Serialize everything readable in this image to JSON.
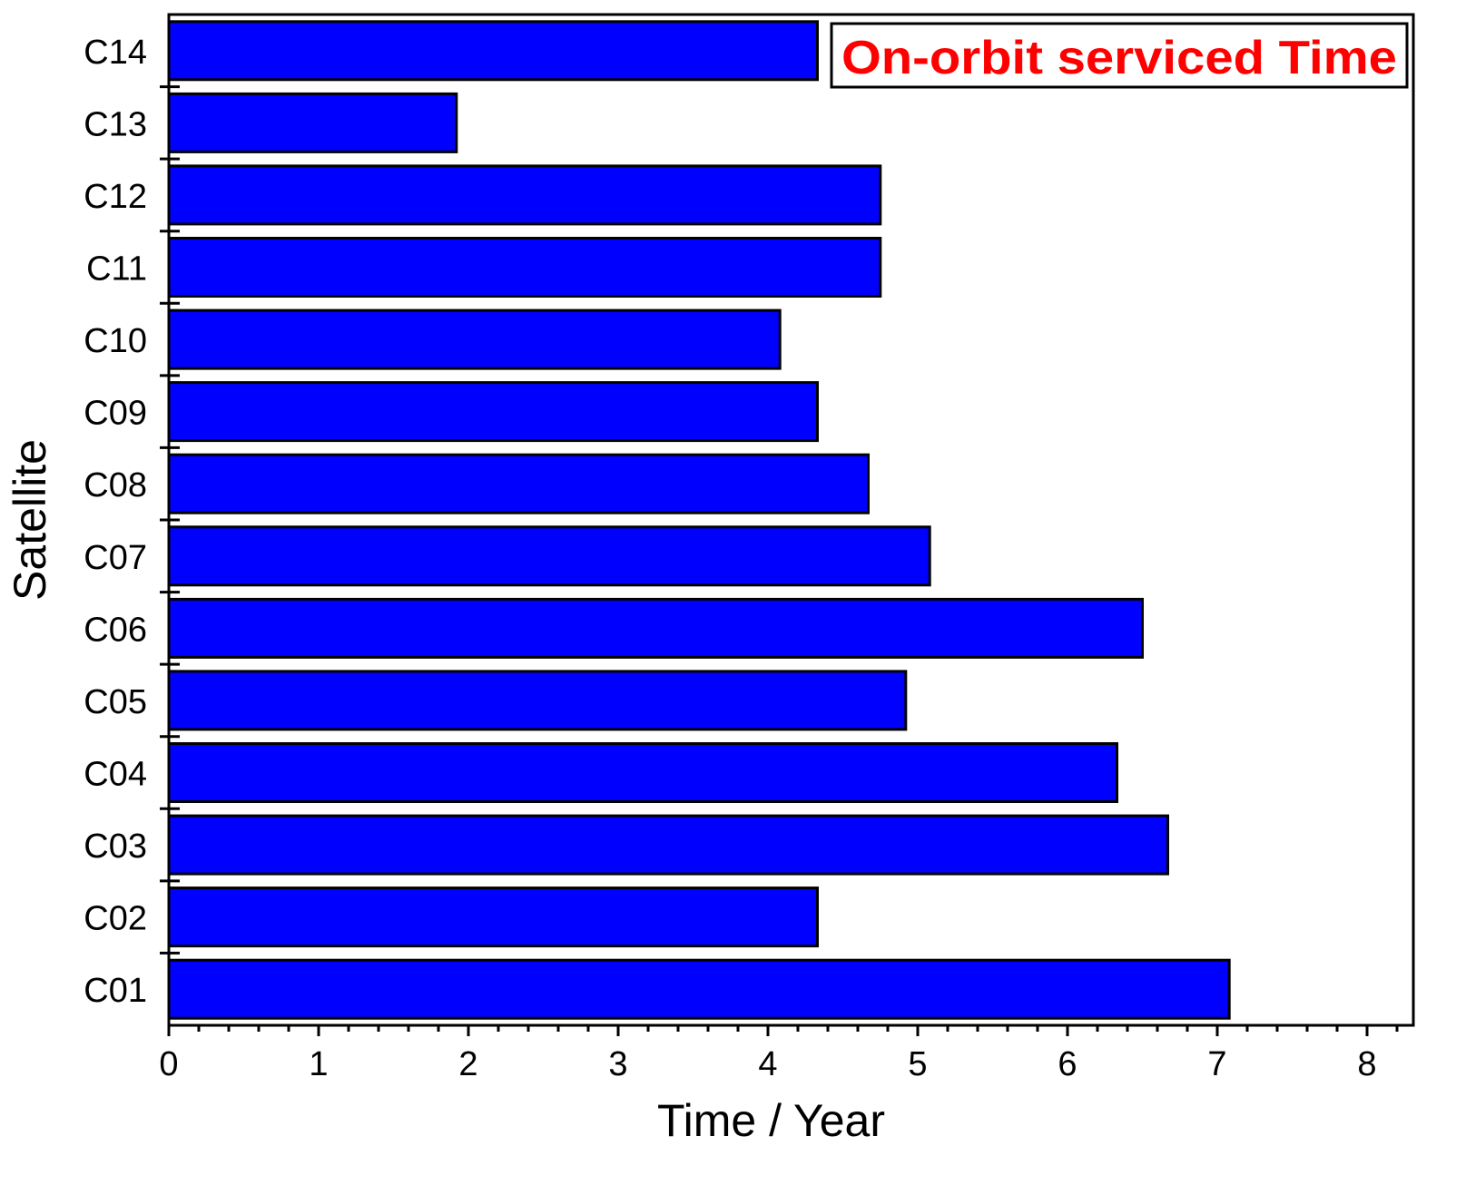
{
  "chart_data": {
    "type": "bar",
    "orientation": "horizontal",
    "categories": [
      "C01",
      "C02",
      "C03",
      "C04",
      "C05",
      "C06",
      "C07",
      "C08",
      "C09",
      "C10",
      "C11",
      "C12",
      "C13",
      "C14"
    ],
    "values": [
      7.08,
      4.33,
      6.67,
      6.33,
      4.92,
      6.5,
      5.08,
      4.67,
      4.33,
      4.08,
      4.75,
      4.75,
      1.92,
      4.33
    ],
    "bar_color": "#0000ff",
    "xlabel": "Time / Year",
    "ylabel": "Satellite",
    "xlim": [
      0,
      8.3
    ],
    "xticks": [
      "0",
      "1",
      "2",
      "3",
      "4",
      "5",
      "6",
      "7",
      "8"
    ],
    "x_minor_step": 0.2,
    "grid": false,
    "legend": {
      "text": "On-orbit serviced Time",
      "color": "#ff0000",
      "placement": "top-right"
    }
  }
}
